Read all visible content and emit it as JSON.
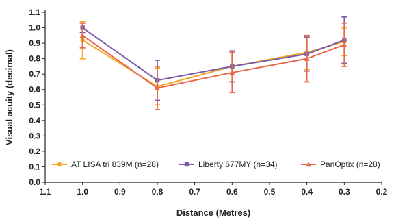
{
  "chart_data": {
    "type": "line",
    "xlabel": "Distance (Metres)",
    "ylabel": "Visual acuity (decimal)",
    "xlim": [
      1.1,
      0.2
    ],
    "ylim": [
      0.0,
      1.1
    ],
    "x_ticks": [
      "1.1",
      "1.0",
      "0.9",
      "0.8",
      "0.7",
      "0.6",
      "0.5",
      "0.4",
      "0.3",
      "0.2"
    ],
    "y_ticks": [
      "0.0",
      "0.1",
      "0.2",
      "0.3",
      "0.4",
      "0.5",
      "0.6",
      "0.7",
      "0.8",
      "0.9",
      "1.0",
      "1.1"
    ],
    "x_reversed": true,
    "grid": false,
    "legend_position": "lower-center",
    "series": [
      {
        "name": "AT LISA tri 839M (n=28)",
        "color": "#F5A623",
        "marker": "circle",
        "x": [
          1.0,
          0.8,
          0.6,
          0.4,
          0.3
        ],
        "y": [
          0.92,
          0.62,
          0.75,
          0.84,
          0.91
        ],
        "err": [
          0.12,
          0.12,
          0.1,
          0.11,
          0.09
        ]
      },
      {
        "name": "Liberty 677MY (n=34)",
        "color": "#7A5BA5",
        "marker": "square",
        "x": [
          1.0,
          0.8,
          0.6,
          0.4,
          0.3
        ],
        "y": [
          1.0,
          0.66,
          0.75,
          0.83,
          0.92
        ],
        "err": [
          0.03,
          0.13,
          0.1,
          0.11,
          0.15
        ]
      },
      {
        "name": "PanOptix (n=28)",
        "color": "#E8694A",
        "marker": "triangle",
        "x": [
          1.0,
          0.8,
          0.6,
          0.4,
          0.3
        ],
        "y": [
          0.95,
          0.61,
          0.71,
          0.8,
          0.89
        ],
        "err": [
          0.08,
          0.14,
          0.13,
          0.15,
          0.14
        ]
      }
    ]
  }
}
